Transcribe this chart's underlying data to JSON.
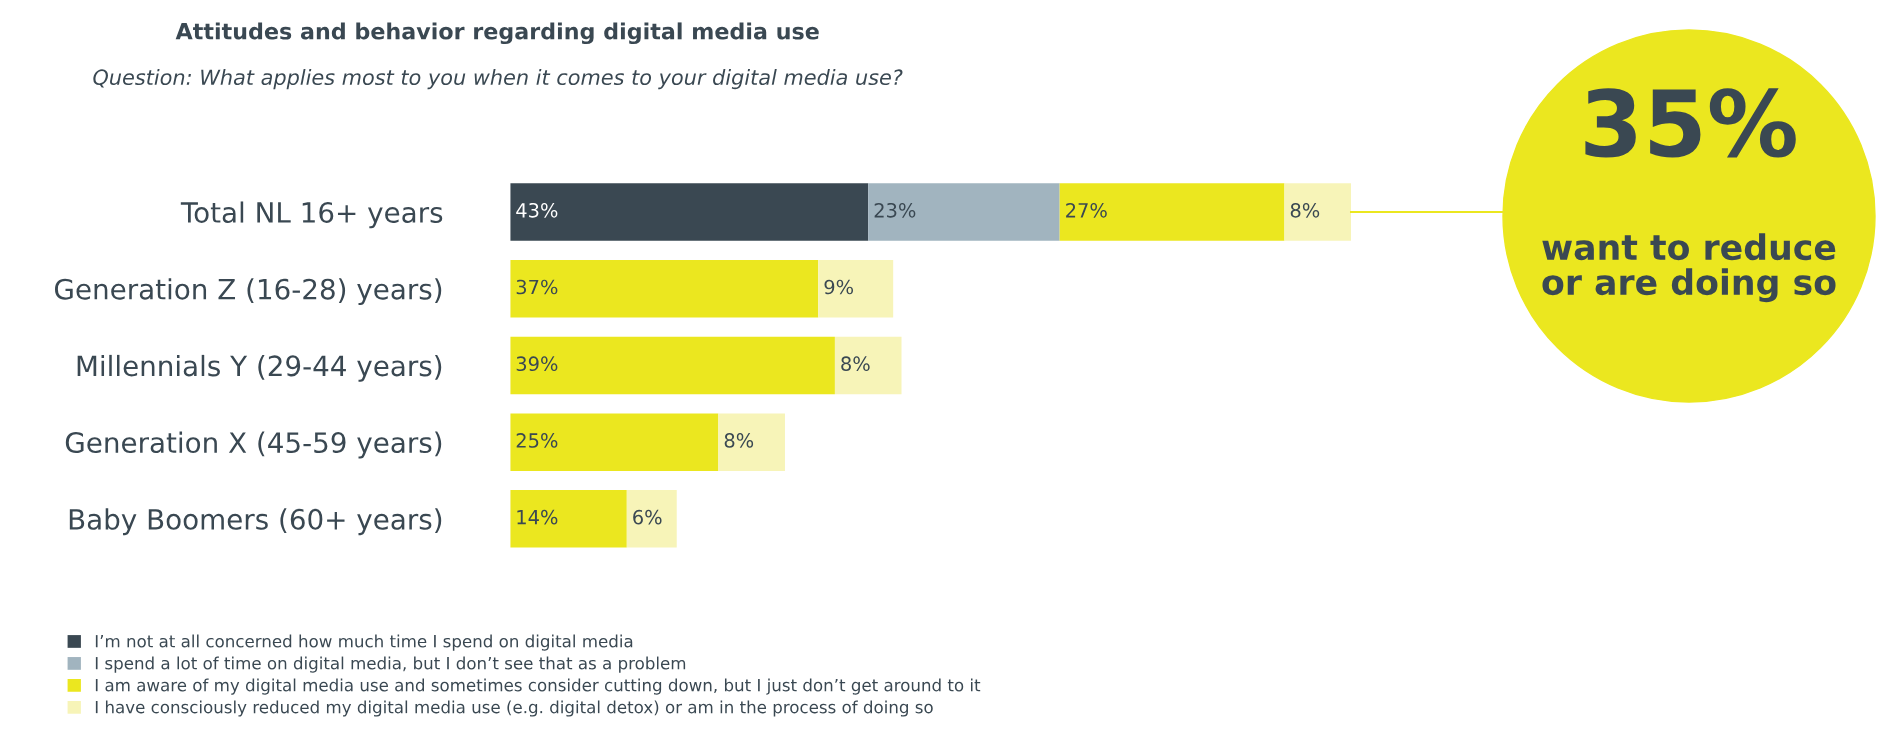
{
  "chart_data": {
    "type": "bar",
    "orientation": "horizontal",
    "stacked": true,
    "title": "Attitudes and behavior regarding digital media use",
    "subtitle": "Question: What applies most to you when it comes to your digital media use?",
    "categories": [
      "Total NL 16+ years",
      "Generation Z (16-28) years)",
      "Millennials Y (29-44 years)",
      "Generation X (45-59 years)",
      "Baby Boomers (60+ years)"
    ],
    "series": [
      {
        "name": "I’m not at all concerned how much time I spend on digital media",
        "color": "#3a4852",
        "values": [
          43,
          null,
          null,
          null,
          null
        ],
        "value_labels": [
          "43%",
          null,
          null,
          null,
          null
        ]
      },
      {
        "name": "I spend a lot of time on digital media, but I don’t see that as a problem",
        "color": "#a1b4bf",
        "values": [
          23,
          null,
          null,
          null,
          null
        ],
        "value_labels": [
          "23%",
          null,
          null,
          null,
          null
        ]
      },
      {
        "name": "I am aware of my digital media use and sometimes consider cutting down, but I just don’t get around to it",
        "color": "#ebe71f",
        "values": [
          27,
          37,
          39,
          25,
          14
        ],
        "value_labels": [
          "27%",
          "37%",
          "39%",
          "25%",
          "14%"
        ]
      },
      {
        "name": "I have consciously reduced my digital media use (e.g. digital detox) or am in the process of doing so",
        "color": "#f7f4b8",
        "values": [
          8,
          9,
          8,
          8,
          6
        ],
        "value_labels": [
          "8%",
          "9%",
          "8%",
          "8%",
          "6%"
        ]
      }
    ],
    "annotations": [
      "35%",
      "want to reduce\nor are doing so"
    ],
    "legend": "bottom left",
    "grid": false,
    "tick_labels": "y"
  }
}
